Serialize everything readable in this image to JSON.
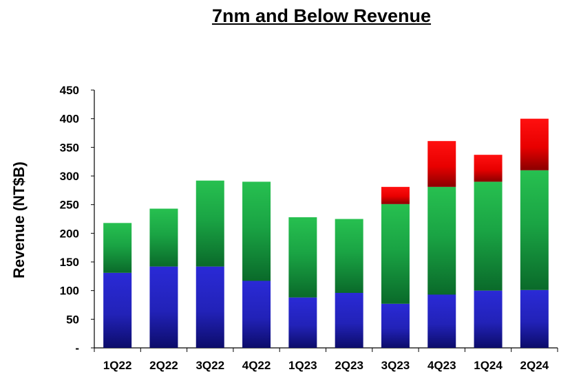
{
  "chart_data": {
    "type": "bar",
    "stacked": true,
    "title": "7nm and Below Revenue",
    "xlabel": "",
    "ylabel": "Revenue (NT$B)",
    "ylim": [
      0,
      450
    ],
    "yticks": [
      0,
      50,
      100,
      150,
      200,
      250,
      300,
      350,
      400,
      450
    ],
    "ytick_labels": [
      "-",
      "50",
      "100",
      "150",
      "200",
      "250",
      "300",
      "350",
      "400",
      "450"
    ],
    "categories": [
      "1Q22",
      "2Q22",
      "3Q22",
      "4Q22",
      "1Q23",
      "2Q23",
      "3Q23",
      "4Q23",
      "1Q24",
      "2Q24"
    ],
    "series": [
      {
        "color": "#2525c8",
        "values": [
          131,
          142,
          142,
          117,
          88,
          96,
          77,
          93,
          100,
          101
        ]
      },
      {
        "color": "#21b04a",
        "values": [
          87,
          101,
          150,
          173,
          140,
          129,
          174,
          188,
          190,
          209
        ]
      },
      {
        "color": "#ff0000",
        "values": [
          0,
          0,
          0,
          0,
          0,
          0,
          30,
          80,
          47,
          90
        ]
      }
    ],
    "grid": false,
    "legend": "none"
  }
}
